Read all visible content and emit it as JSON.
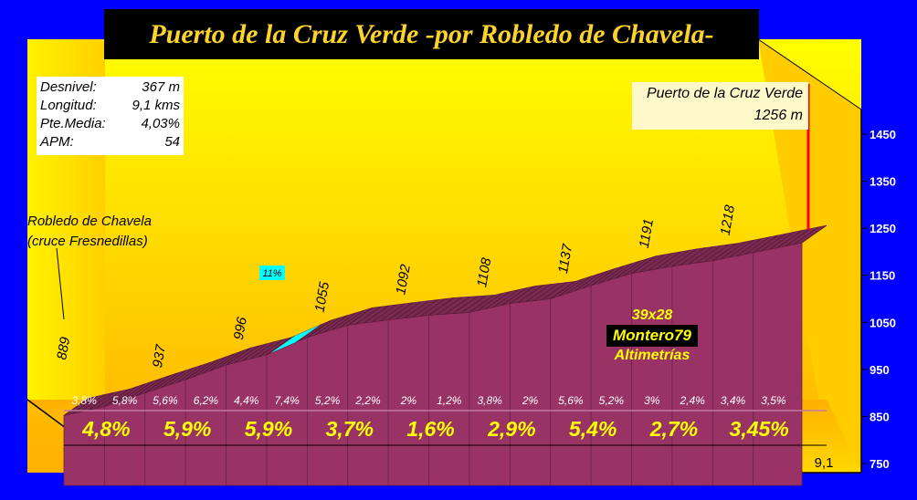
{
  "title": "Puerto de la Cruz Verde -por Robledo de Chavela-",
  "stats": [
    {
      "label": "Desnivel:",
      "value": "367 m"
    },
    {
      "label": "Longitud:",
      "value": "9,1 kms"
    },
    {
      "label": "Pte.Media:",
      "value": "4,03%"
    },
    {
      "label": "APM:",
      "value": "54"
    }
  ],
  "start": {
    "line1": "Robledo de Chavela",
    "line2": "(cruce Fresnedillas)"
  },
  "summit": {
    "line1": "Puerto de la Cruz Verde",
    "line2": "1256 m"
  },
  "credit": {
    "gear": "39x28",
    "author": "Montero79",
    "site": "Altimetrías"
  },
  "colors": {
    "background": "#0000ff",
    "wall": "#ffff00",
    "fill": "#993366",
    "edge": "#6b2347",
    "label": "#ffff00",
    "title_text": "#ffd42a",
    "steep_marker": "#00ffff",
    "summit_marker": "#ff0000"
  },
  "chart_data": {
    "type": "area",
    "xlabel": "",
    "ylabel": "",
    "xlim": [
      0,
      9.1
    ],
    "ylim": [
      750,
      1500
    ],
    "x_ticks": [
      "0",
      "1",
      "2",
      "3",
      "4",
      "5",
      "6",
      "7",
      "8",
      "9,1"
    ],
    "y_ticks": [
      "750",
      "850",
      "950",
      "1050",
      "1150",
      "1250",
      "1350",
      "1450"
    ],
    "distance_km": [
      0,
      0.5,
      1,
      1.5,
      2,
      2.5,
      3,
      3.5,
      4,
      4.5,
      5,
      5.5,
      6,
      6.5,
      7,
      7.5,
      8,
      8.5,
      9.1
    ],
    "altitude_m": [
      889,
      908,
      937,
      965,
      996,
      1018,
      1055,
      1081,
      1092,
      1102,
      1108,
      1127,
      1137,
      1165,
      1191,
      1206,
      1218,
      1235,
      1256
    ],
    "altitude_labels": [
      {
        "km": 0,
        "text": "889"
      },
      {
        "km": 1,
        "text": "937"
      },
      {
        "km": 2,
        "text": "996"
      },
      {
        "km": 3,
        "text": "1055"
      },
      {
        "km": 4,
        "text": "1092"
      },
      {
        "km": 5,
        "text": "1108"
      },
      {
        "km": 6,
        "text": "1137"
      },
      {
        "km": 7,
        "text": "1191"
      },
      {
        "km": 8,
        "text": "1218"
      }
    ],
    "half_km_gradients": [
      "3,8%",
      "5,8%",
      "5,6%",
      "6,2%",
      "4,4%",
      "7,4%",
      "5,2%",
      "2,2%",
      "2%",
      "1,2%",
      "3,8%",
      "2%",
      "5,6%",
      "5,2%",
      "3%",
      "2,4%",
      "3,4%",
      "3,5%"
    ],
    "km_gradients": [
      "4,8%",
      "5,9%",
      "5,9%",
      "3,7%",
      "1,6%",
      "2,9%",
      "5,4%",
      "2,7%",
      "3,45%"
    ],
    "annotations": [
      {
        "km": 2.75,
        "text": "11%"
      }
    ]
  }
}
